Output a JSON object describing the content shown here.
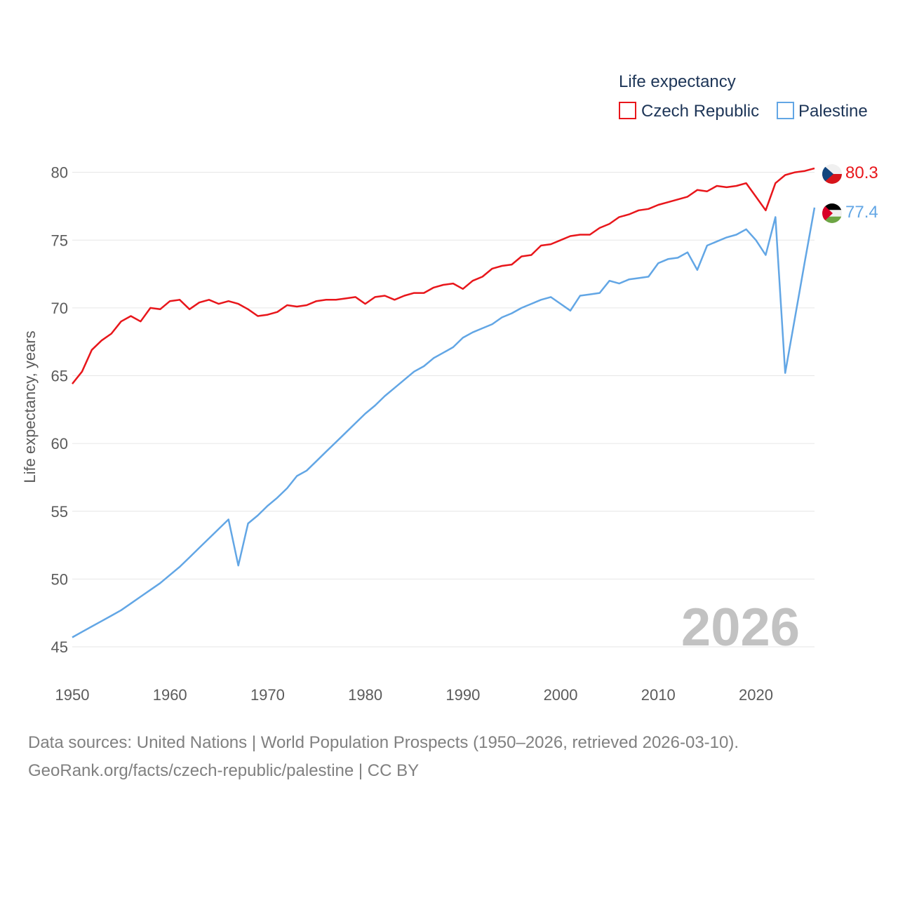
{
  "chart_data": {
    "type": "line",
    "legend": {
      "title": "Life expectancy",
      "placement": "top-right"
    },
    "ylabel": "Life expectancy, years",
    "xlabel": "",
    "xlim": [
      1950,
      2026
    ],
    "ylim": [
      45,
      82
    ],
    "x_ticks": [
      1950,
      1960,
      1970,
      1980,
      1990,
      2000,
      2010,
      2020
    ],
    "y_ticks": [
      45,
      50,
      55,
      60,
      65,
      70,
      75,
      80
    ],
    "year_label": "2026",
    "x": [
      1950,
      1951,
      1952,
      1953,
      1954,
      1955,
      1956,
      1957,
      1958,
      1959,
      1960,
      1961,
      1962,
      1963,
      1964,
      1965,
      1966,
      1967,
      1968,
      1969,
      1970,
      1971,
      1972,
      1973,
      1974,
      1975,
      1976,
      1977,
      1978,
      1979,
      1980,
      1981,
      1982,
      1983,
      1984,
      1985,
      1986,
      1987,
      1988,
      1989,
      1990,
      1991,
      1992,
      1993,
      1994,
      1995,
      1996,
      1997,
      1998,
      1999,
      2000,
      2001,
      2002,
      2003,
      2004,
      2005,
      2006,
      2007,
      2008,
      2009,
      2010,
      2011,
      2012,
      2013,
      2014,
      2015,
      2016,
      2017,
      2018,
      2019,
      2020,
      2021,
      2022,
      2023,
      2024,
      2025,
      2026
    ],
    "series": [
      {
        "name": "Czech Republic",
        "color": "#e8161b",
        "end_label": "80.3",
        "flag": "czech-flag-icon",
        "values": [
          64.4,
          65.3,
          66.9,
          67.6,
          68.1,
          69.0,
          69.4,
          69.0,
          70.0,
          69.9,
          70.5,
          70.6,
          69.9,
          70.4,
          70.6,
          70.3,
          70.5,
          70.3,
          69.9,
          69.4,
          69.5,
          69.7,
          70.2,
          70.1,
          70.2,
          70.5,
          70.6,
          70.6,
          70.7,
          70.8,
          70.3,
          70.8,
          70.9,
          70.6,
          70.9,
          71.1,
          71.1,
          71.5,
          71.7,
          71.8,
          71.4,
          72.0,
          72.3,
          72.9,
          73.1,
          73.2,
          73.8,
          73.9,
          74.6,
          74.7,
          75.0,
          75.3,
          75.4,
          75.4,
          75.9,
          76.2,
          76.7,
          76.9,
          77.2,
          77.3,
          77.6,
          77.8,
          78.0,
          78.2,
          78.7,
          78.6,
          79.0,
          78.9,
          79.0,
          79.2,
          78.2,
          77.2,
          79.2,
          79.8,
          80.0,
          80.1,
          80.3
        ]
      },
      {
        "name": "Palestine",
        "color": "#62a6e5",
        "end_label": "77.4",
        "flag": "palestine-flag-icon",
        "values": [
          45.7,
          46.1,
          46.5,
          46.9,
          47.3,
          47.7,
          48.2,
          48.7,
          49.2,
          49.7,
          50.3,
          50.9,
          51.6,
          52.3,
          53.0,
          53.7,
          54.4,
          51.0,
          54.1,
          54.7,
          55.4,
          56.0,
          56.7,
          57.6,
          58.0,
          58.7,
          59.4,
          60.1,
          60.8,
          61.5,
          62.2,
          62.8,
          63.5,
          64.1,
          64.7,
          65.3,
          65.7,
          66.3,
          66.7,
          67.1,
          67.8,
          68.2,
          68.5,
          68.8,
          69.3,
          69.6,
          70.0,
          70.3,
          70.6,
          70.8,
          70.3,
          69.8,
          70.9,
          71.0,
          71.1,
          72.0,
          71.8,
          72.1,
          72.2,
          72.3,
          73.3,
          73.6,
          73.7,
          74.1,
          72.8,
          74.6,
          74.9,
          75.2,
          75.4,
          75.8,
          75.0,
          73.9,
          76.7,
          65.2,
          69.3,
          73.4,
          77.4
        ]
      }
    ]
  },
  "footer": {
    "line1": "Data sources: United Nations | World Population Prospects (1950–2026, retrieved 2026-03-10).",
    "line2": "GeoRank.org/facts/czech-republic/palestine | CC BY"
  }
}
